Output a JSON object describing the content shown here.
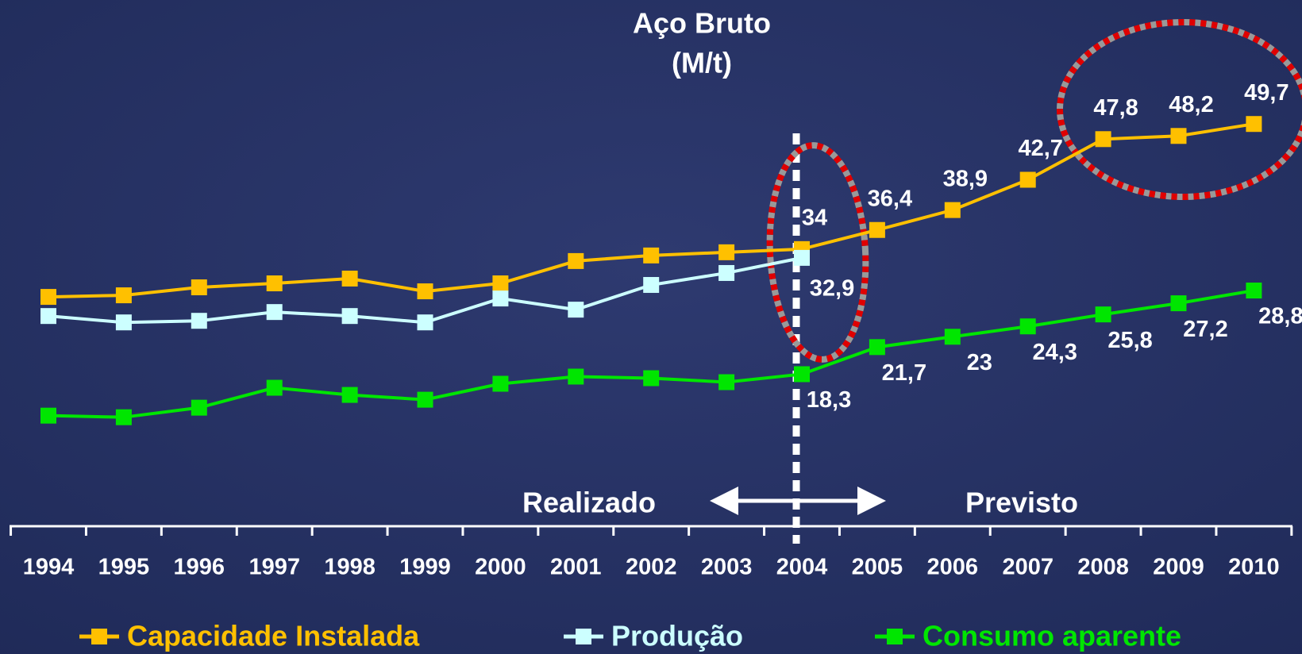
{
  "chart_data": {
    "type": "line",
    "title": "Aço Bruto",
    "subtitle": "(M/t)",
    "categories": [
      "1994",
      "1995",
      "1996",
      "1997",
      "1998",
      "1999",
      "2000",
      "2001",
      "2002",
      "2003",
      "2004",
      "2005",
      "2006",
      "2007",
      "2008",
      "2009",
      "2010"
    ],
    "series": [
      {
        "name": "Capacidade Instalada",
        "color": "#ffc000",
        "values": [
          28.0,
          28.2,
          29.2,
          29.7,
          30.3,
          28.7,
          29.7,
          32.5,
          33.2,
          33.6,
          34,
          36.4,
          38.9,
          42.7,
          47.8,
          48.2,
          49.7
        ],
        "value_labels": [
          null,
          null,
          null,
          null,
          null,
          null,
          null,
          null,
          null,
          null,
          "34",
          "36,4",
          "38,9",
          "42,7",
          "47,8",
          "48,2",
          "49,7"
        ]
      },
      {
        "name": "Produção",
        "color": "#ccffff",
        "values": [
          25.6,
          24.8,
          25.0,
          26.1,
          25.6,
          24.8,
          27.8,
          26.4,
          29.5,
          31.0,
          32.9,
          null,
          null,
          null,
          null,
          null,
          null
        ],
        "value_labels": [
          null,
          null,
          null,
          null,
          null,
          null,
          null,
          null,
          null,
          null,
          "32,9",
          null,
          null,
          null,
          null,
          null,
          null
        ]
      },
      {
        "name": "Consumo aparente",
        "color": "#00e600",
        "values": [
          13.1,
          12.9,
          14.1,
          16.6,
          15.7,
          15.1,
          17.1,
          18.0,
          17.8,
          17.3,
          18.3,
          21.7,
          23,
          24.3,
          25.8,
          27.2,
          28.8
        ],
        "value_labels": [
          null,
          null,
          null,
          null,
          null,
          null,
          null,
          null,
          null,
          null,
          "18,3",
          "21,7",
          "23",
          "24,3",
          "25,8",
          "27,2",
          "28,8"
        ]
      }
    ],
    "ylim": [
      5,
      55
    ],
    "annotations": [
      "Realizado",
      "Previsto"
    ]
  }
}
